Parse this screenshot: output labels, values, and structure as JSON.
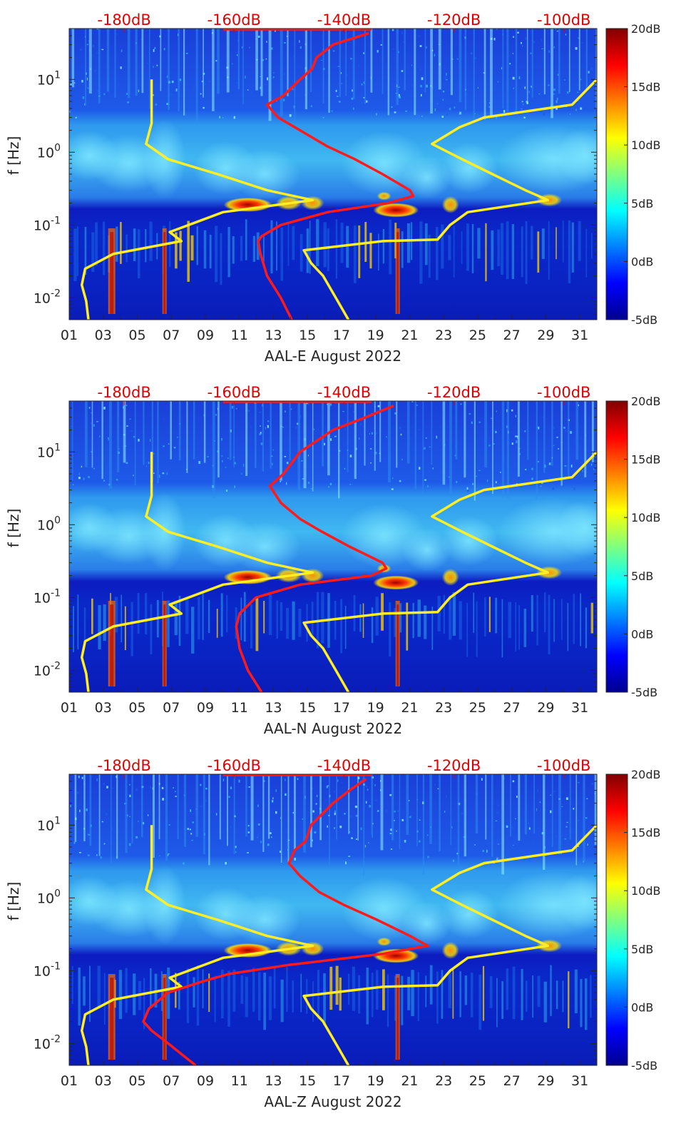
{
  "chart_data": [
    {
      "type": "heatmap",
      "xlabel": "AAL-E August 2022",
      "ylabel": "f [Hz]",
      "x_ticks": [
        "01",
        "03",
        "05",
        "07",
        "09",
        "11",
        "13",
        "15",
        "17",
        "19",
        "21",
        "23",
        "25",
        "27",
        "29",
        "31"
      ],
      "xlim": [
        1,
        32
      ],
      "y_scale": "log",
      "ylim": [
        0.005,
        50
      ],
      "y_ticks": [
        {
          "base": "10",
          "exp": "-2",
          "value": 0.01
        },
        {
          "base": "10",
          "exp": "-1",
          "value": 0.1
        },
        {
          "base": "10",
          "exp": "0",
          "value": 1
        },
        {
          "base": "10",
          "exp": "1",
          "value": 10
        }
      ],
      "colorbar": {
        "range": [
          -5,
          20
        ],
        "ticks": [
          "20dB",
          "15dB",
          "10dB",
          "5dB",
          "0dB",
          "-5dB"
        ],
        "colormap": "jet"
      },
      "top_axis_ticks": [
        "-180dB",
        "-160dB",
        "-140dB",
        "-120dB",
        "-100dB"
      ],
      "top_axis_range": [
        -190,
        -94
      ],
      "overlay_lines": [
        {
          "color": "#ffee22",
          "points": [
            [
              0.005,
              -186.5
            ],
            [
              0.009,
              -186.9
            ],
            [
              0.015,
              -187.7
            ],
            [
              0.025,
              -187.1
            ],
            [
              0.04,
              -182
            ],
            [
              0.06,
              -169.6
            ],
            [
              0.08,
              -171.7
            ],
            [
              0.15,
              -162
            ],
            [
              0.22,
              -145.7
            ],
            [
              0.3,
              -154
            ],
            [
              0.5,
              -163
            ],
            [
              0.8,
              -172
            ],
            [
              1.3,
              -176
            ],
            [
              2.5,
              -175
            ],
            [
              5,
              -175
            ],
            [
              10,
              -175
            ]
          ]
        },
        {
          "color": "#ffee22",
          "points": [
            [
              0.005,
              -139.2
            ],
            [
              0.01,
              -141.5
            ],
            [
              0.02,
              -143.8
            ],
            [
              0.03,
              -146
            ],
            [
              0.045,
              -147.3
            ],
            [
              0.06,
              -132.9
            ],
            [
              0.063,
              -123
            ],
            [
              0.1,
              -120.7
            ],
            [
              0.15,
              -117.5
            ],
            [
              0.22,
              -102.9
            ],
            [
              0.3,
              -107
            ],
            [
              0.5,
              -113
            ],
            [
              0.8,
              -118.5
            ],
            [
              1.3,
              -124
            ],
            [
              2.2,
              -119
            ],
            [
              3,
              -114.5
            ],
            [
              4.5,
              -98.5
            ],
            [
              10,
              -94
            ]
          ]
        },
        {
          "color": "#ff1a1a",
          "points": [
            [
              0.005,
              -149.5
            ],
            [
              0.01,
              -151.5
            ],
            [
              0.02,
              -154
            ],
            [
              0.04,
              -155.2
            ],
            [
              0.06,
              -155.6
            ],
            [
              0.07,
              -155
            ],
            [
              0.1,
              -151.5
            ],
            [
              0.15,
              -143
            ],
            [
              0.2,
              -132
            ],
            [
              0.25,
              -127.4
            ],
            [
              0.3,
              -128
            ],
            [
              0.5,
              -133
            ],
            [
              0.8,
              -138
            ],
            [
              1.2,
              -143
            ],
            [
              2,
              -148
            ],
            [
              3,
              -152
            ],
            [
              4.5,
              -154
            ],
            [
              6,
              -151
            ],
            [
              10,
              -148
            ],
            [
              14,
              -145.8
            ],
            [
              20,
              -145
            ],
            [
              30,
              -142
            ],
            [
              43,
              -135.5
            ]
          ]
        }
      ]
    },
    {
      "type": "heatmap",
      "xlabel": "AAL-N August 2022",
      "ylabel": "f [Hz]",
      "x_ticks": [
        "01",
        "03",
        "05",
        "07",
        "09",
        "11",
        "13",
        "15",
        "17",
        "19",
        "21",
        "23",
        "25",
        "27",
        "29",
        "31"
      ],
      "xlim": [
        1,
        32
      ],
      "y_scale": "log",
      "ylim": [
        0.005,
        50
      ],
      "y_ticks": [
        {
          "base": "10",
          "exp": "-2",
          "value": 0.01
        },
        {
          "base": "10",
          "exp": "-1",
          "value": 0.1
        },
        {
          "base": "10",
          "exp": "0",
          "value": 1
        },
        {
          "base": "10",
          "exp": "1",
          "value": 10
        }
      ],
      "colorbar": {
        "range": [
          -5,
          20
        ],
        "ticks": [
          "20dB",
          "15dB",
          "10dB",
          "5dB",
          "0dB",
          "-5dB"
        ],
        "colormap": "jet"
      },
      "top_axis_ticks": [
        "-180dB",
        "-160dB",
        "-140dB",
        "-120dB",
        "-100dB"
      ],
      "top_axis_range": [
        -190,
        -94
      ],
      "overlay_lines": [
        {
          "color": "#ffee22",
          "points": [
            [
              0.005,
              -186.5
            ],
            [
              0.009,
              -186.9
            ],
            [
              0.015,
              -187.7
            ],
            [
              0.025,
              -187.1
            ],
            [
              0.04,
              -182
            ],
            [
              0.06,
              -169.6
            ],
            [
              0.08,
              -171.7
            ],
            [
              0.15,
              -162
            ],
            [
              0.22,
              -145.7
            ],
            [
              0.3,
              -154
            ],
            [
              0.5,
              -163
            ],
            [
              0.8,
              -172
            ],
            [
              1.3,
              -176
            ],
            [
              2.5,
              -175
            ],
            [
              5,
              -175
            ],
            [
              10,
              -175
            ]
          ]
        },
        {
          "color": "#ffee22",
          "points": [
            [
              0.005,
              -139.2
            ],
            [
              0.01,
              -141.5
            ],
            [
              0.02,
              -143.8
            ],
            [
              0.03,
              -146
            ],
            [
              0.045,
              -147.3
            ],
            [
              0.06,
              -132.9
            ],
            [
              0.063,
              -123
            ],
            [
              0.1,
              -120.7
            ],
            [
              0.15,
              -117.5
            ],
            [
              0.22,
              -102.9
            ],
            [
              0.3,
              -107
            ],
            [
              0.5,
              -113
            ],
            [
              0.8,
              -118.5
            ],
            [
              1.3,
              -124
            ],
            [
              2.2,
              -119
            ],
            [
              3,
              -114.5
            ],
            [
              4.5,
              -98.5
            ],
            [
              10,
              -94
            ]
          ]
        },
        {
          "color": "#ff1a1a",
          "points": [
            [
              0.005,
              -155
            ],
            [
              0.01,
              -157.5
            ],
            [
              0.02,
              -159
            ],
            [
              0.04,
              -159.6
            ],
            [
              0.06,
              -159
            ],
            [
              0.1,
              -156
            ],
            [
              0.15,
              -148
            ],
            [
              0.2,
              -135
            ],
            [
              0.25,
              -132.3
            ],
            [
              0.3,
              -133
            ],
            [
              0.5,
              -139
            ],
            [
              0.8,
              -144
            ],
            [
              1.2,
              -148
            ],
            [
              2,
              -151.5
            ],
            [
              3.4,
              -153.5
            ],
            [
              5,
              -151
            ],
            [
              10,
              -148
            ],
            [
              20,
              -142
            ],
            [
              30,
              -136
            ],
            [
              43,
              -131
            ]
          ]
        }
      ]
    },
    {
      "type": "heatmap",
      "xlabel": "AAL-Z August 2022",
      "ylabel": "f [Hz]",
      "x_ticks": [
        "01",
        "03",
        "05",
        "07",
        "09",
        "11",
        "13",
        "15",
        "17",
        "19",
        "21",
        "23",
        "25",
        "27",
        "29",
        "31"
      ],
      "xlim": [
        1,
        32
      ],
      "y_scale": "log",
      "ylim": [
        0.005,
        50
      ],
      "y_ticks": [
        {
          "base": "10",
          "exp": "-2",
          "value": 0.01
        },
        {
          "base": "10",
          "exp": "-1",
          "value": 0.1
        },
        {
          "base": "10",
          "exp": "0",
          "value": 1
        },
        {
          "base": "10",
          "exp": "1",
          "value": 10
        }
      ],
      "colorbar": {
        "range": [
          -5,
          20
        ],
        "ticks": [
          "20dB",
          "15dB",
          "10dB",
          "5dB",
          "0dB",
          "-5dB"
        ],
        "colormap": "jet"
      },
      "top_axis_ticks": [
        "-180dB",
        "-160dB",
        "-140dB",
        "-120dB",
        "-100dB"
      ],
      "top_axis_range": [
        -190,
        -94
      ],
      "overlay_lines": [
        {
          "color": "#ffee22",
          "points": [
            [
              0.005,
              -186.5
            ],
            [
              0.009,
              -186.9
            ],
            [
              0.015,
              -187.7
            ],
            [
              0.025,
              -187.1
            ],
            [
              0.04,
              -182
            ],
            [
              0.06,
              -169.6
            ],
            [
              0.08,
              -171.7
            ],
            [
              0.15,
              -162
            ],
            [
              0.22,
              -145.7
            ],
            [
              0.3,
              -154
            ],
            [
              0.5,
              -163
            ],
            [
              0.8,
              -172
            ],
            [
              1.3,
              -176
            ],
            [
              2.5,
              -175
            ],
            [
              5,
              -175
            ],
            [
              10,
              -175
            ]
          ]
        },
        {
          "color": "#ffee22",
          "points": [
            [
              0.005,
              -139.2
            ],
            [
              0.01,
              -141.5
            ],
            [
              0.02,
              -143.8
            ],
            [
              0.03,
              -146
            ],
            [
              0.045,
              -147.3
            ],
            [
              0.06,
              -132.9
            ],
            [
              0.063,
              -123
            ],
            [
              0.1,
              -120.7
            ],
            [
              0.15,
              -117.5
            ],
            [
              0.22,
              -102.9
            ],
            [
              0.3,
              -107
            ],
            [
              0.5,
              -113
            ],
            [
              0.8,
              -118.5
            ],
            [
              1.3,
              -124
            ],
            [
              2.2,
              -119
            ],
            [
              3,
              -114.5
            ],
            [
              4.5,
              -98.5
            ],
            [
              10,
              -94
            ]
          ]
        },
        {
          "color": "#ff1a1a",
          "points": [
            [
              0.005,
              -167
            ],
            [
              0.01,
              -172
            ],
            [
              0.015,
              -175
            ],
            [
              0.02,
              -176.5
            ],
            [
              0.03,
              -175.5
            ],
            [
              0.05,
              -172
            ],
            [
              0.07,
              -166
            ],
            [
              0.09,
              -161
            ],
            [
              0.12,
              -150
            ],
            [
              0.17,
              -133
            ],
            [
              0.22,
              -124.8
            ],
            [
              0.3,
              -128
            ],
            [
              0.5,
              -134
            ],
            [
              0.8,
              -140
            ],
            [
              1.2,
              -144.5
            ],
            [
              2,
              -148
            ],
            [
              3,
              -150
            ],
            [
              4.5,
              -149
            ],
            [
              6,
              -147
            ],
            [
              10,
              -146
            ],
            [
              20,
              -142
            ],
            [
              30,
              -139
            ],
            [
              43,
              -136
            ]
          ]
        }
      ]
    }
  ]
}
